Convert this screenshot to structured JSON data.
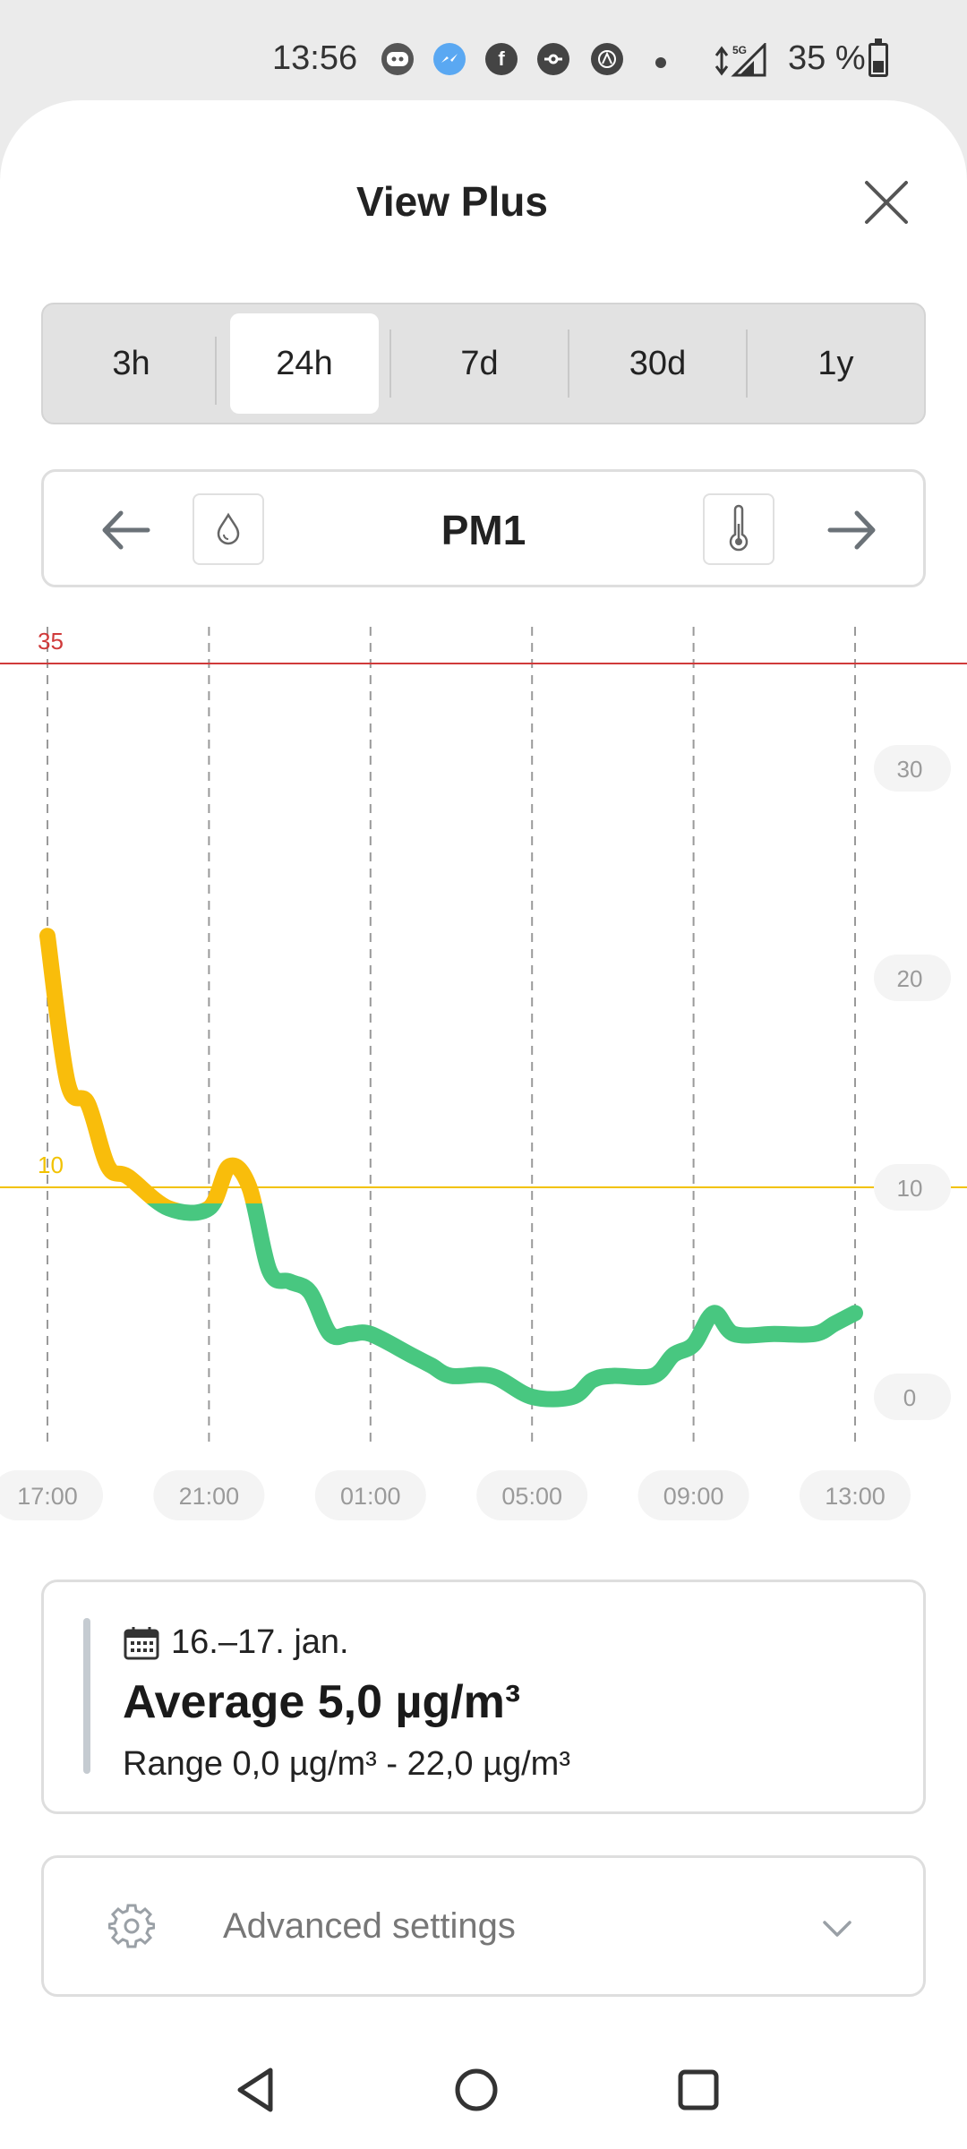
{
  "status_bar": {
    "time": "13:56",
    "network": "5G",
    "battery": "35 %",
    "icons": [
      "discord-icon",
      "messenger-icon",
      "facebook-icon",
      "pokeball-icon",
      "app-a-icon",
      "dot-icon",
      "data-arrows-icon",
      "signal-icon",
      "battery-icon"
    ]
  },
  "header": {
    "title": "View Plus",
    "close_icon": "close-icon"
  },
  "ranges": {
    "items": [
      "3h",
      "24h",
      "7d",
      "30d",
      "1y"
    ],
    "selected": "24h"
  },
  "pollutant": {
    "label": "PM1",
    "prev_icon": "arrow-left-icon",
    "next_icon": "arrow-right-icon",
    "humidity_icon": "droplet-icon",
    "temperature_icon": "thermometer-icon"
  },
  "chart_data": {
    "type": "line",
    "x_ticks": [
      "17:00",
      "21:00",
      "01:00",
      "05:00",
      "09:00",
      "13:00"
    ],
    "y_ticks": [
      0,
      10,
      20,
      30
    ],
    "ylim": [
      0,
      35
    ],
    "grid": true,
    "thresholds": [
      {
        "label": "35",
        "value": 35,
        "color": "#d03a3a"
      },
      {
        "label": "10",
        "value": 10,
        "color": "#f2c200"
      }
    ],
    "colors": {
      "above_threshold": "#f9bd0b",
      "below_threshold": "#48c780"
    },
    "series": [
      {
        "x": [
          "17:00",
          "17:30",
          "18:00",
          "18:30",
          "19:00",
          "20:00",
          "21:00",
          "21:30",
          "22:00",
          "22:30",
          "23:00",
          "23:30",
          "00:00",
          "00:30",
          "01:00",
          "02:00",
          "02:30",
          "03:00",
          "04:00",
          "05:00",
          "06:00",
          "06:30",
          "07:00",
          "08:00",
          "08:30",
          "09:00",
          "09:30",
          "10:00",
          "11:00",
          "12:00",
          "12:30",
          "13:00"
        ],
        "values": [
          22,
          15,
          14,
          11,
          10.5,
          9,
          9,
          11,
          10,
          6,
          5.5,
          5,
          3,
          3,
          3,
          2,
          1.5,
          1,
          1,
          0,
          0,
          0.8,
          1,
          1,
          2,
          2.5,
          4,
          3,
          3,
          3,
          3.5,
          4
        ]
      }
    ]
  },
  "summary": {
    "calendar_icon": "calendar-icon",
    "date": "16.–17. jan.",
    "average": "Average 5,0 µg/m³",
    "range": "Range 0,0 µg/m³ - 22,0 µg/m³"
  },
  "advanced": {
    "label": "Advanced settings",
    "gear_icon": "gear-icon",
    "chevron_icon": "chevron-down-icon"
  },
  "nav": {
    "icons": [
      "back-icon",
      "home-icon",
      "recents-icon"
    ]
  }
}
